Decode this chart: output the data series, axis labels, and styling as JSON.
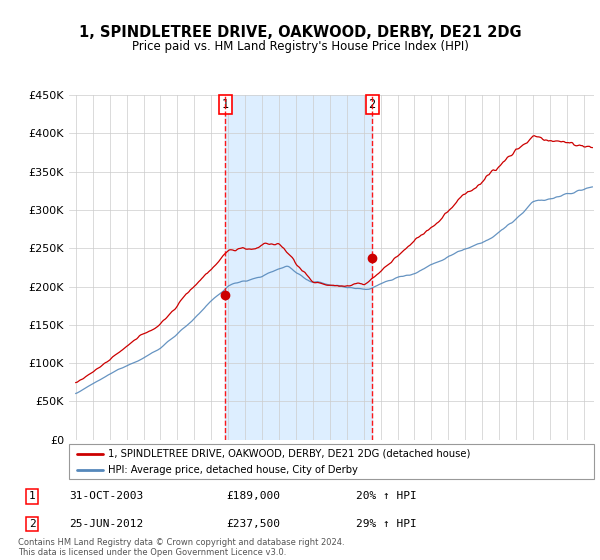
{
  "title": "1, SPINDLETREE DRIVE, OAKWOOD, DERBY, DE21 2DG",
  "subtitle": "Price paid vs. HM Land Registry's House Price Index (HPI)",
  "legend_line1": "1, SPINDLETREE DRIVE, OAKWOOD, DERBY, DE21 2DG (detached house)",
  "legend_line2": "HPI: Average price, detached house, City of Derby",
  "sale1_date": "31-OCT-2003",
  "sale1_price": 189000,
  "sale1_label": "20% ↑ HPI",
  "sale2_date": "25-JUN-2012",
  "sale2_price": 237500,
  "sale2_label": "29% ↑ HPI",
  "footnote": "Contains HM Land Registry data © Crown copyright and database right 2024.\nThis data is licensed under the Open Government Licence v3.0.",
  "property_color": "#cc0000",
  "hpi_color": "#5588bb",
  "shade_color": "#ddeeff",
  "ylim_min": 0,
  "ylim_max": 450000,
  "bg_color": "#ffffff",
  "grid_color": "#cccccc"
}
